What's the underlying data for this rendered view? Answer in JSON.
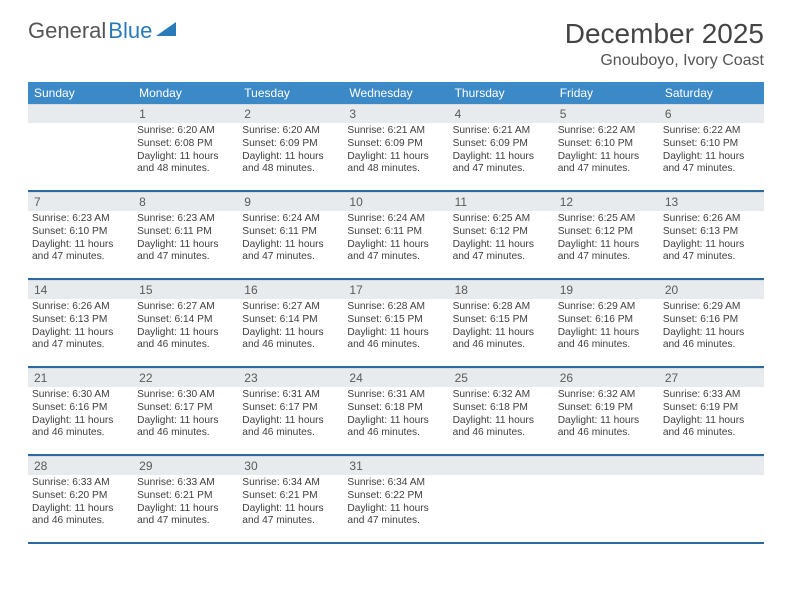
{
  "logo": {
    "text1": "General",
    "text2": "Blue"
  },
  "title": "December 2025",
  "location": "Gnouboyo, Ivory Coast",
  "colors": {
    "header_bg": "#3b89c7",
    "header_text": "#ffffff",
    "row_divider": "#2a6aa0",
    "daynum_bg": "#e8ebed",
    "body_text": "#404040"
  },
  "day_headers": [
    "Sunday",
    "Monday",
    "Tuesday",
    "Wednesday",
    "Thursday",
    "Friday",
    "Saturday"
  ],
  "weeks": [
    [
      null,
      {
        "n": "1",
        "sr": "6:20 AM",
        "ss": "6:08 PM",
        "dl": "11 hours and 48 minutes."
      },
      {
        "n": "2",
        "sr": "6:20 AM",
        "ss": "6:09 PM",
        "dl": "11 hours and 48 minutes."
      },
      {
        "n": "3",
        "sr": "6:21 AM",
        "ss": "6:09 PM",
        "dl": "11 hours and 48 minutes."
      },
      {
        "n": "4",
        "sr": "6:21 AM",
        "ss": "6:09 PM",
        "dl": "11 hours and 47 minutes."
      },
      {
        "n": "5",
        "sr": "6:22 AM",
        "ss": "6:10 PM",
        "dl": "11 hours and 47 minutes."
      },
      {
        "n": "6",
        "sr": "6:22 AM",
        "ss": "6:10 PM",
        "dl": "11 hours and 47 minutes."
      }
    ],
    [
      {
        "n": "7",
        "sr": "6:23 AM",
        "ss": "6:10 PM",
        "dl": "11 hours and 47 minutes."
      },
      {
        "n": "8",
        "sr": "6:23 AM",
        "ss": "6:11 PM",
        "dl": "11 hours and 47 minutes."
      },
      {
        "n": "9",
        "sr": "6:24 AM",
        "ss": "6:11 PM",
        "dl": "11 hours and 47 minutes."
      },
      {
        "n": "10",
        "sr": "6:24 AM",
        "ss": "6:11 PM",
        "dl": "11 hours and 47 minutes."
      },
      {
        "n": "11",
        "sr": "6:25 AM",
        "ss": "6:12 PM",
        "dl": "11 hours and 47 minutes."
      },
      {
        "n": "12",
        "sr": "6:25 AM",
        "ss": "6:12 PM",
        "dl": "11 hours and 47 minutes."
      },
      {
        "n": "13",
        "sr": "6:26 AM",
        "ss": "6:13 PM",
        "dl": "11 hours and 47 minutes."
      }
    ],
    [
      {
        "n": "14",
        "sr": "6:26 AM",
        "ss": "6:13 PM",
        "dl": "11 hours and 47 minutes."
      },
      {
        "n": "15",
        "sr": "6:27 AM",
        "ss": "6:14 PM",
        "dl": "11 hours and 46 minutes."
      },
      {
        "n": "16",
        "sr": "6:27 AM",
        "ss": "6:14 PM",
        "dl": "11 hours and 46 minutes."
      },
      {
        "n": "17",
        "sr": "6:28 AM",
        "ss": "6:15 PM",
        "dl": "11 hours and 46 minutes."
      },
      {
        "n": "18",
        "sr": "6:28 AM",
        "ss": "6:15 PM",
        "dl": "11 hours and 46 minutes."
      },
      {
        "n": "19",
        "sr": "6:29 AM",
        "ss": "6:16 PM",
        "dl": "11 hours and 46 minutes."
      },
      {
        "n": "20",
        "sr": "6:29 AM",
        "ss": "6:16 PM",
        "dl": "11 hours and 46 minutes."
      }
    ],
    [
      {
        "n": "21",
        "sr": "6:30 AM",
        "ss": "6:16 PM",
        "dl": "11 hours and 46 minutes."
      },
      {
        "n": "22",
        "sr": "6:30 AM",
        "ss": "6:17 PM",
        "dl": "11 hours and 46 minutes."
      },
      {
        "n": "23",
        "sr": "6:31 AM",
        "ss": "6:17 PM",
        "dl": "11 hours and 46 minutes."
      },
      {
        "n": "24",
        "sr": "6:31 AM",
        "ss": "6:18 PM",
        "dl": "11 hours and 46 minutes."
      },
      {
        "n": "25",
        "sr": "6:32 AM",
        "ss": "6:18 PM",
        "dl": "11 hours and 46 minutes."
      },
      {
        "n": "26",
        "sr": "6:32 AM",
        "ss": "6:19 PM",
        "dl": "11 hours and 46 minutes."
      },
      {
        "n": "27",
        "sr": "6:33 AM",
        "ss": "6:19 PM",
        "dl": "11 hours and 46 minutes."
      }
    ],
    [
      {
        "n": "28",
        "sr": "6:33 AM",
        "ss": "6:20 PM",
        "dl": "11 hours and 46 minutes."
      },
      {
        "n": "29",
        "sr": "6:33 AM",
        "ss": "6:21 PM",
        "dl": "11 hours and 47 minutes."
      },
      {
        "n": "30",
        "sr": "6:34 AM",
        "ss": "6:21 PM",
        "dl": "11 hours and 47 minutes."
      },
      {
        "n": "31",
        "sr": "6:34 AM",
        "ss": "6:22 PM",
        "dl": "11 hours and 47 minutes."
      },
      null,
      null,
      null
    ]
  ],
  "labels": {
    "sunrise": "Sunrise:",
    "sunset": "Sunset:",
    "daylight": "Daylight:"
  }
}
